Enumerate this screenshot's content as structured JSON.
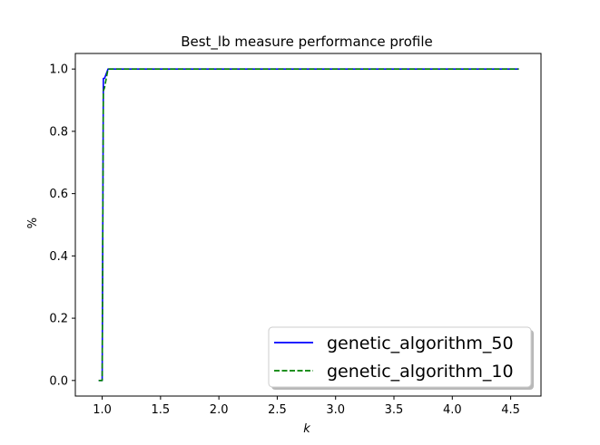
{
  "chart_data": {
    "type": "line",
    "title": "Best_lb measure performance profile",
    "xlabel": "k",
    "ylabel": "%",
    "xlim": [
      0.77,
      4.76
    ],
    "ylim": [
      -0.05,
      1.05
    ],
    "xticks": [
      1.0,
      1.5,
      2.0,
      2.5,
      3.0,
      3.5,
      4.0,
      4.5
    ],
    "xtick_labels": [
      "1.0",
      "1.5",
      "2.0",
      "2.5",
      "3.0",
      "3.5",
      "4.0",
      "4.5"
    ],
    "yticks": [
      0.0,
      0.2,
      0.4,
      0.6,
      0.8,
      1.0
    ],
    "ytick_labels": [
      "0.0",
      "0.2",
      "0.4",
      "0.6",
      "0.8",
      "1.0"
    ],
    "grid": false,
    "legend_position": "lower-right",
    "series": [
      {
        "name": "genetic_algorithm_50",
        "color": "#0000ff",
        "style": "solid",
        "x": [
          0.97,
          1.0,
          1.01,
          1.02,
          1.03,
          1.05,
          1.1,
          2.0,
          3.0,
          4.0,
          4.57
        ],
        "y": [
          0.0,
          0.0,
          0.97,
          0.97,
          0.98,
          1.0,
          1.0,
          1.0,
          1.0,
          1.0,
          1.0
        ]
      },
      {
        "name": "genetic_algorithm_10",
        "color": "#008000",
        "style": "dashed",
        "x": [
          0.97,
          1.0,
          1.01,
          1.02,
          1.03,
          1.05,
          1.1,
          2.0,
          3.0,
          4.0,
          4.57
        ],
        "y": [
          0.0,
          0.0,
          0.93,
          0.94,
          0.96,
          1.0,
          1.0,
          1.0,
          1.0,
          1.0,
          1.0
        ]
      }
    ]
  }
}
